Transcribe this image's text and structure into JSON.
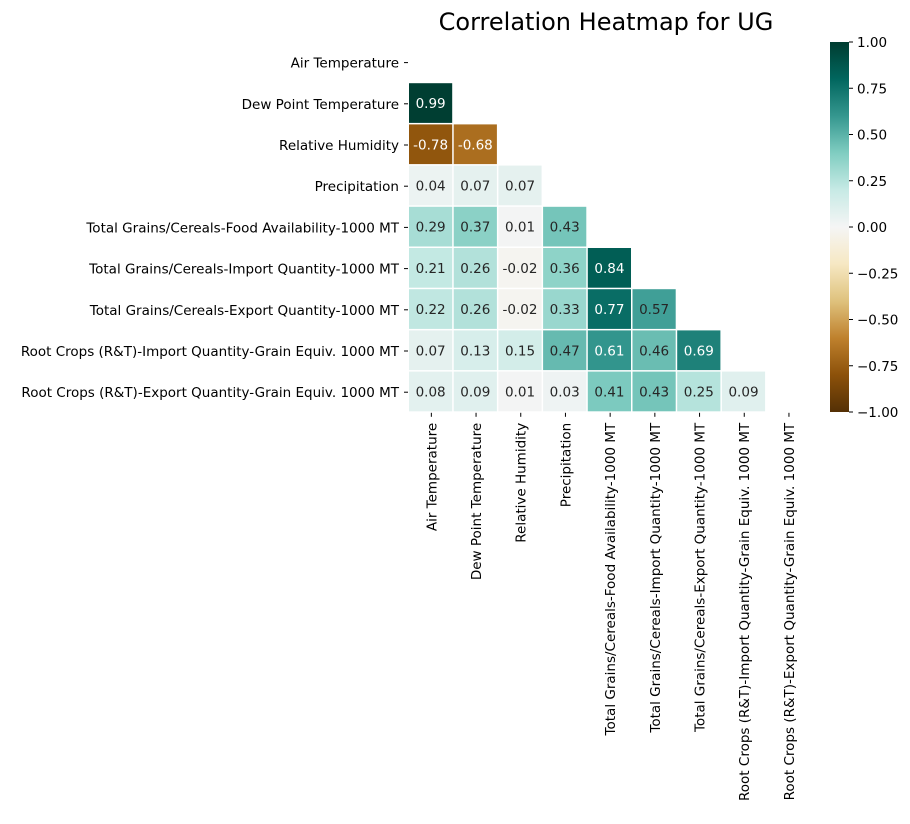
{
  "chart_data": {
    "type": "heatmap",
    "title": "Correlation Heatmap for UG",
    "xlabel": "",
    "ylabel": "",
    "mask": "upper-triangle-including-diagonal",
    "row_labels": [
      "Air Temperature",
      "Dew Point Temperature",
      "Relative Humidity",
      "Precipitation",
      "Total Grains/Cereals-Food Availability-1000 MT",
      "Total Grains/Cereals-Import Quantity-1000 MT",
      "Total Grains/Cereals-Export Quantity-1000 MT",
      "Root Crops (R&T)-Import Quantity-Grain Equiv. 1000 MT",
      "Root Crops (R&T)-Export Quantity-Grain Equiv. 1000 MT"
    ],
    "col_labels": [
      "Air Temperature",
      "Dew Point Temperature",
      "Relative Humidity",
      "Precipitation",
      "Total Grains/Cereals-Food Availability-1000 MT",
      "Total Grains/Cereals-Import Quantity-1000 MT",
      "Total Grains/Cereals-Export Quantity-1000 MT",
      "Root Crops (R&T)-Import Quantity-Grain Equiv. 1000 MT",
      "Root Crops (R&T)-Export Quantity-Grain Equiv. 1000 MT"
    ],
    "values": [
      [],
      [
        0.99
      ],
      [
        -0.78,
        -0.68
      ],
      [
        0.04,
        0.07,
        0.07
      ],
      [
        0.29,
        0.37,
        0.01,
        0.43
      ],
      [
        0.21,
        0.26,
        -0.02,
        0.36,
        0.84
      ],
      [
        0.22,
        0.26,
        -0.02,
        0.33,
        0.77,
        0.57
      ],
      [
        0.07,
        0.13,
        0.15,
        0.47,
        0.61,
        0.46,
        0.69
      ],
      [
        0.08,
        0.09,
        0.01,
        0.03,
        0.41,
        0.43,
        0.25,
        0.09
      ]
    ],
    "value_format": "0.00",
    "colorbar": {
      "range": [
        -1.0,
        1.0
      ],
      "ticks": [
        "1.00",
        "0.75",
        "0.50",
        "0.25",
        "0.00",
        "−0.25",
        "−0.50",
        "−0.75",
        "−1.00"
      ],
      "tick_values": [
        1.0,
        0.75,
        0.5,
        0.25,
        0.0,
        -0.25,
        -0.5,
        -0.75,
        -1.0
      ],
      "colormap": "BrBG",
      "colors": [
        "#543005",
        "#8c510a",
        "#bf812d",
        "#dfc27d",
        "#f6e8c3",
        "#f5f5f5",
        "#c7eae5",
        "#80cdc1",
        "#35978f",
        "#01665e",
        "#003c30"
      ]
    },
    "cell_separator_color": "#ffffff",
    "grid": false
  }
}
